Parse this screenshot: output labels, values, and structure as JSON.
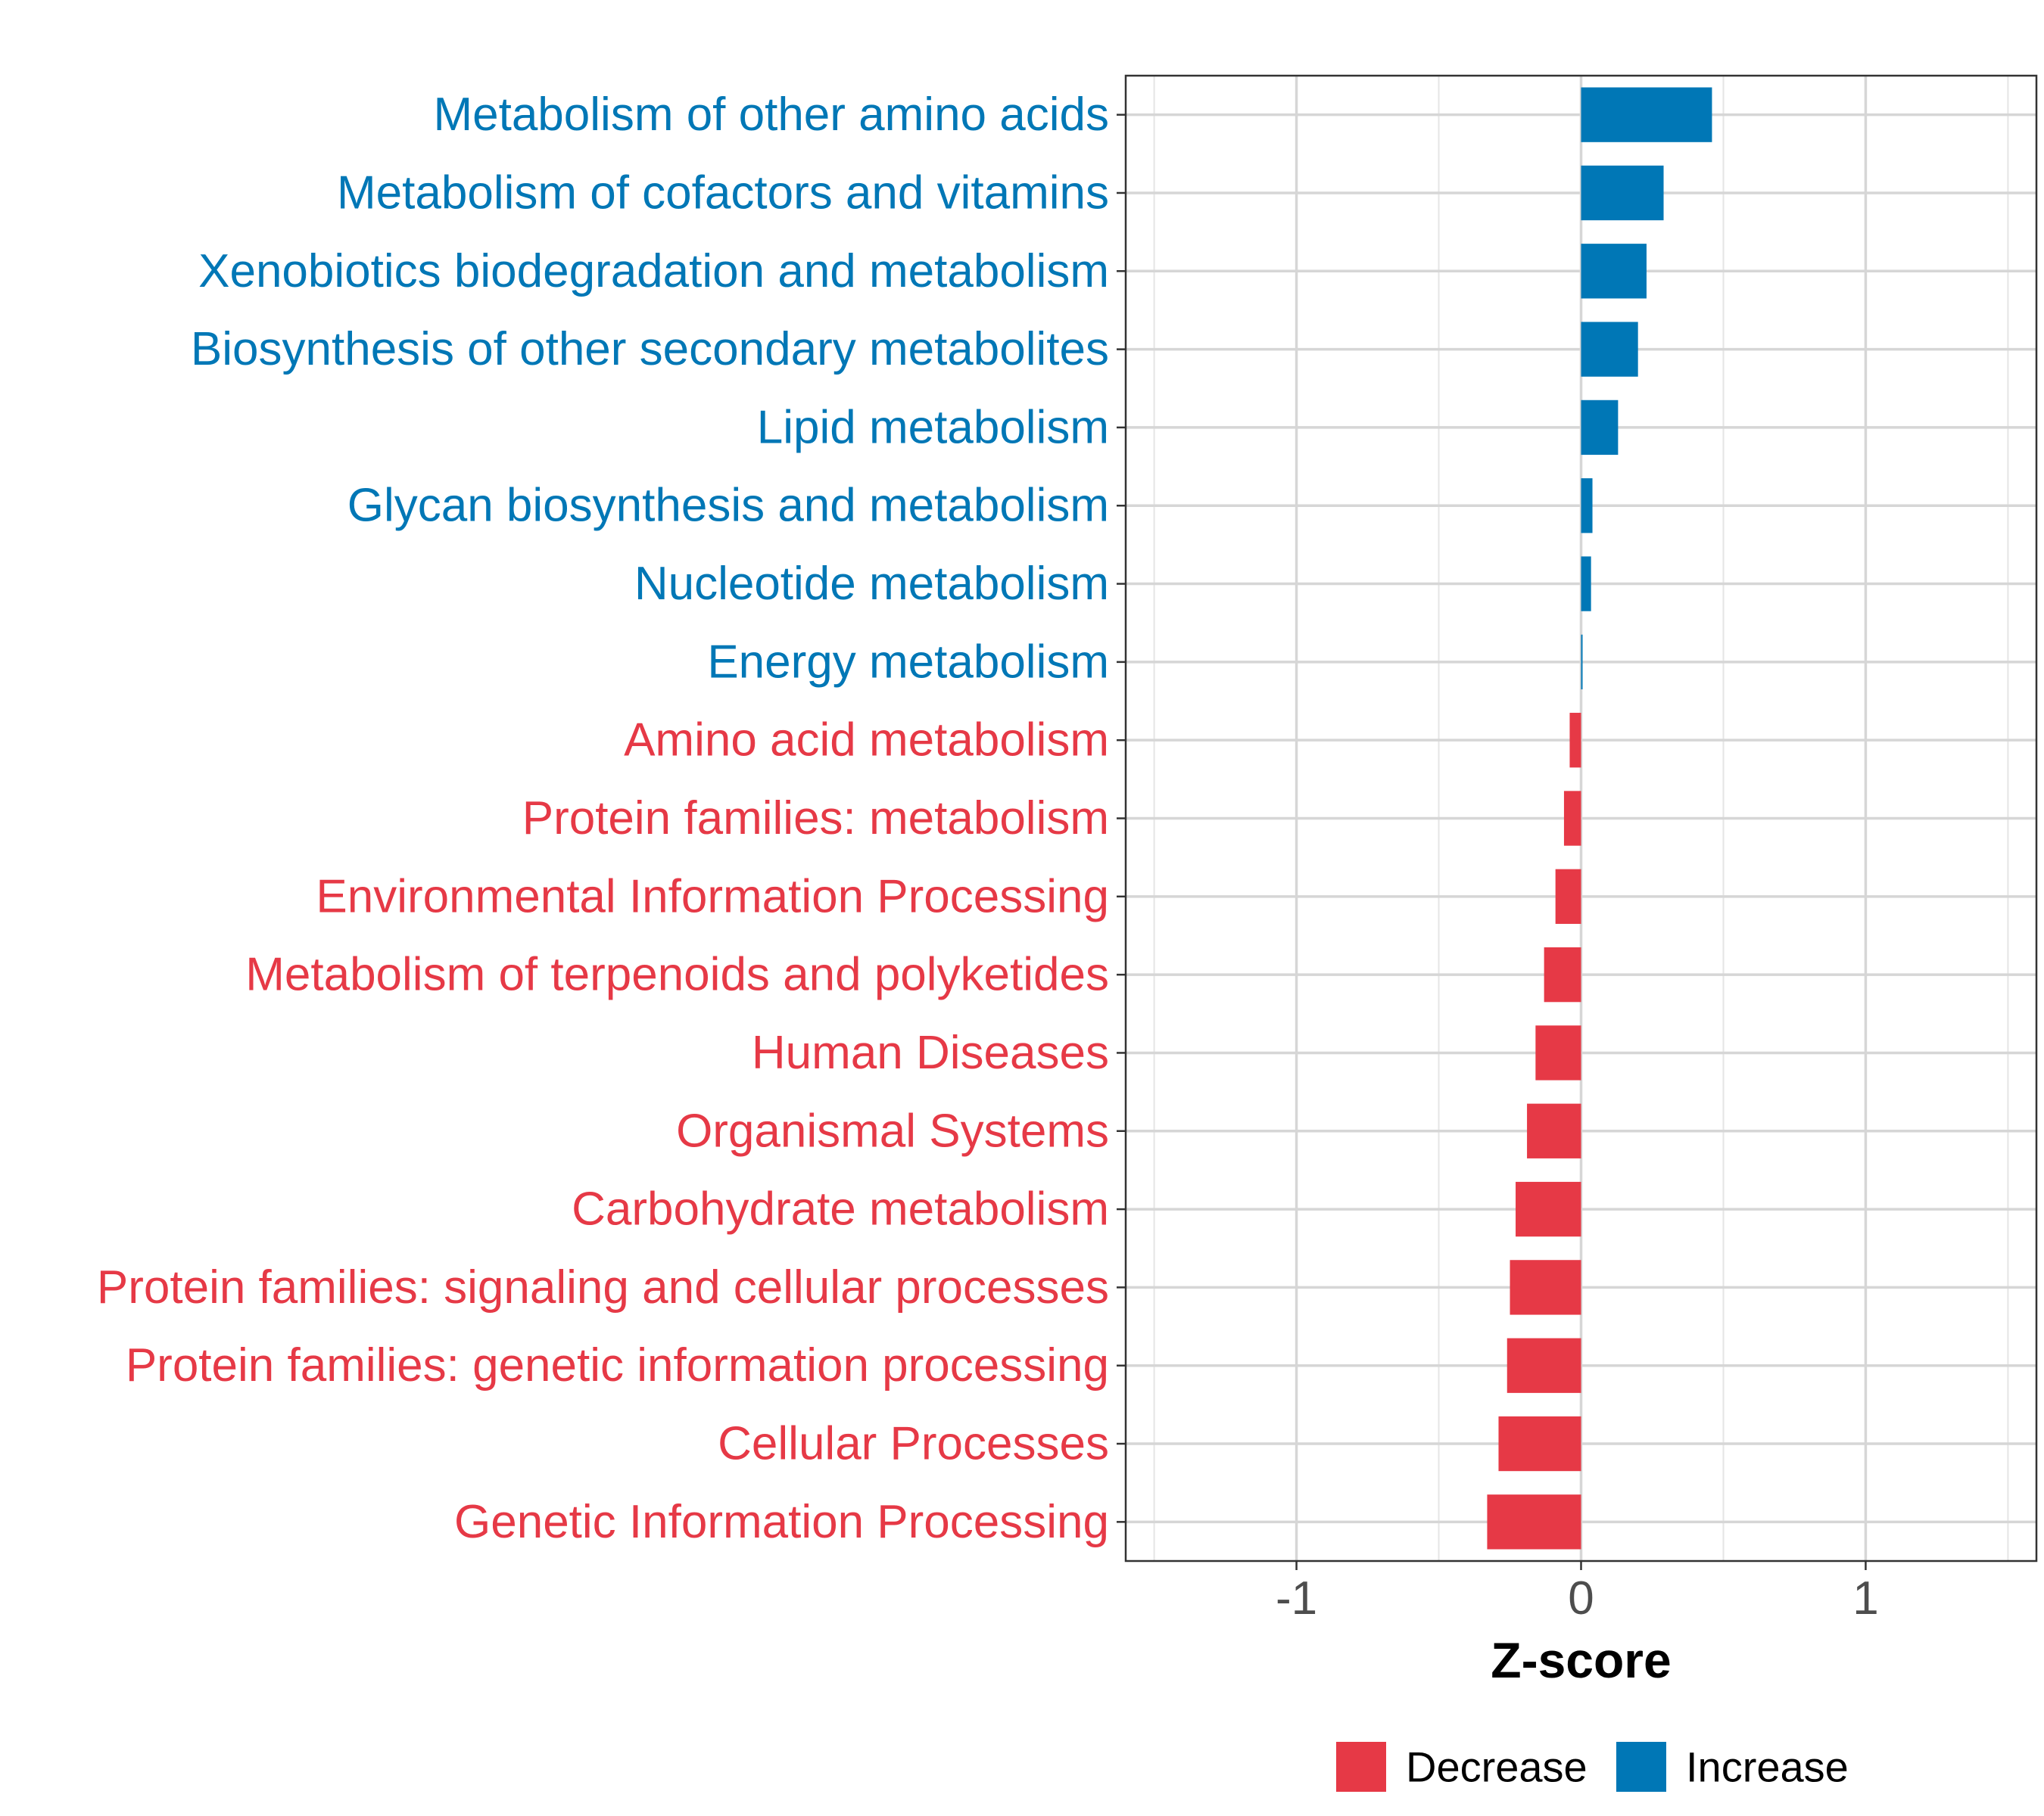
{
  "chart_data": {
    "type": "bar",
    "orientation": "horizontal",
    "xlabel": "Z-score",
    "xlim": [
      -1.6,
      1.6
    ],
    "xticks": [
      -1,
      0,
      1
    ],
    "xtick_labels": [
      "-1",
      "0",
      "1"
    ],
    "grid": true,
    "legend_position": "bottom",
    "legend": [
      {
        "name": "Decrease",
        "color": "#e63946"
      },
      {
        "name": "Increase",
        "color": "#0077b6"
      }
    ],
    "categories": [
      "Metabolism of other amino acids",
      "Metabolism of cofactors and vitamins",
      "Xenobiotics biodegradation and metabolism",
      "Biosynthesis of other secondary metabolites",
      "Lipid metabolism",
      "Glycan biosynthesis and metabolism",
      "Nucleotide metabolism",
      "Energy metabolism",
      "Amino acid metabolism",
      "Protein families: metabolism",
      "Environmental Information Processing",
      "Metabolism of terpenoids and polyketides",
      "Human Diseases",
      "Organismal Systems",
      "Carbohydrate metabolism",
      "Protein families: signaling and cellular processes",
      "Protein families: genetic information processing",
      "Cellular Processes",
      "Genetic Information Processing"
    ],
    "values": [
      0.46,
      0.29,
      0.23,
      0.2,
      0.13,
      0.04,
      0.035,
      0.005,
      -0.04,
      -0.06,
      -0.09,
      -0.13,
      -0.16,
      -0.19,
      -0.23,
      -0.25,
      -0.26,
      -0.29,
      -0.33
    ],
    "groups": [
      "Increase",
      "Increase",
      "Increase",
      "Increase",
      "Increase",
      "Increase",
      "Increase",
      "Increase",
      "Decrease",
      "Decrease",
      "Decrease",
      "Decrease",
      "Decrease",
      "Decrease",
      "Decrease",
      "Decrease",
      "Decrease",
      "Decrease",
      "Decrease"
    ]
  }
}
